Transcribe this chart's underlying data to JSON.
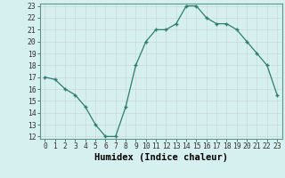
{
  "x": [
    0,
    1,
    2,
    3,
    4,
    5,
    6,
    7,
    8,
    9,
    10,
    11,
    12,
    13,
    14,
    15,
    16,
    17,
    18,
    19,
    20,
    21,
    22,
    23
  ],
  "y": [
    17.0,
    16.8,
    16.0,
    15.5,
    14.5,
    13.0,
    12.0,
    12.0,
    14.5,
    18.0,
    20.0,
    21.0,
    21.0,
    21.5,
    23.0,
    23.0,
    22.0,
    21.5,
    21.5,
    21.0,
    20.0,
    19.0,
    18.0,
    15.5
  ],
  "xlabel": "Humidex (Indice chaleur)",
  "ylim": [
    12,
    23
  ],
  "xlim": [
    -0.5,
    23.5
  ],
  "yticks": [
    12,
    13,
    14,
    15,
    16,
    17,
    18,
    19,
    20,
    21,
    22,
    23
  ],
  "xticks": [
    0,
    1,
    2,
    3,
    4,
    5,
    6,
    7,
    8,
    9,
    10,
    11,
    12,
    13,
    14,
    15,
    16,
    17,
    18,
    19,
    20,
    21,
    22,
    23
  ],
  "line_color": "#2e7d6e",
  "marker_color": "#2e7d6e",
  "bg_color": "#d6efef",
  "grid_color": "#c8dada",
  "tick_label_fontsize": 5.8,
  "xlabel_fontsize": 7.5,
  "marker": "+"
}
